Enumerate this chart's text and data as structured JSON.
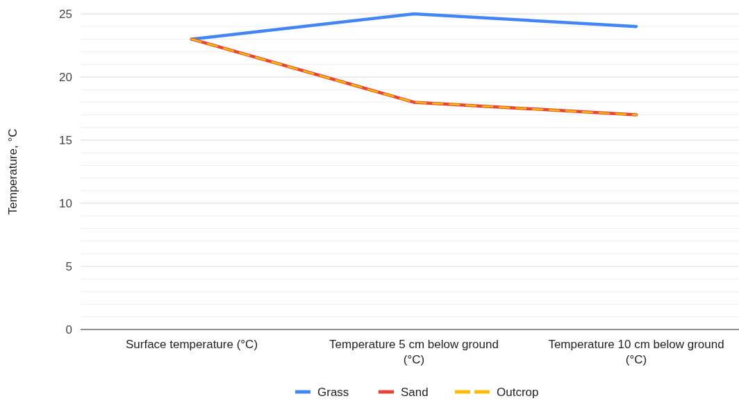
{
  "chart_data": {
    "type": "line",
    "ylabel": "Temperature, °C",
    "categories": [
      "Surface temperature (°C)",
      "Temperature 5 cm below ground (°C)",
      "Temperature 10 cm below ground (°C)"
    ],
    "series": [
      {
        "name": "Grass",
        "color": "#4285f4",
        "values": [
          23,
          25,
          24
        ]
      },
      {
        "name": "Sand",
        "color": "#ea4335",
        "values": [
          23,
          18,
          17
        ]
      },
      {
        "name": "Outcrop",
        "color": "#fbbc04",
        "values": [
          23,
          18,
          17
        ],
        "line_style": "dashed"
      }
    ],
    "ylim": [
      0,
      25
    ],
    "yticks": [
      0,
      {
        "value": 1,
        "label": null
      },
      {
        "value": 2,
        "label": null
      },
      {
        "value": 3,
        "label": null
      },
      {
        "value": 4,
        "label": null
      },
      5,
      {
        "value": 6,
        "label": null
      },
      {
        "value": 7,
        "label": null
      },
      {
        "value": 8,
        "label": null
      },
      {
        "value": 9,
        "label": null
      },
      10,
      {
        "value": 11,
        "label": null
      },
      {
        "value": 12,
        "label": null
      },
      {
        "value": 13,
        "label": null
      },
      {
        "value": 14,
        "label": null
      },
      15,
      {
        "value": 16,
        "label": null
      },
      {
        "value": 17,
        "label": null
      },
      {
        "value": 18,
        "label": null
      },
      {
        "value": 19,
        "label": null
      },
      20,
      {
        "value": 21,
        "label": null
      },
      {
        "value": 22,
        "label": null
      },
      {
        "value": 23,
        "label": null
      },
      {
        "value": 24,
        "label": null
      },
      25
    ],
    "grid": true,
    "legend": "bottom",
    "line_style": "solid",
    "marker": "none"
  }
}
